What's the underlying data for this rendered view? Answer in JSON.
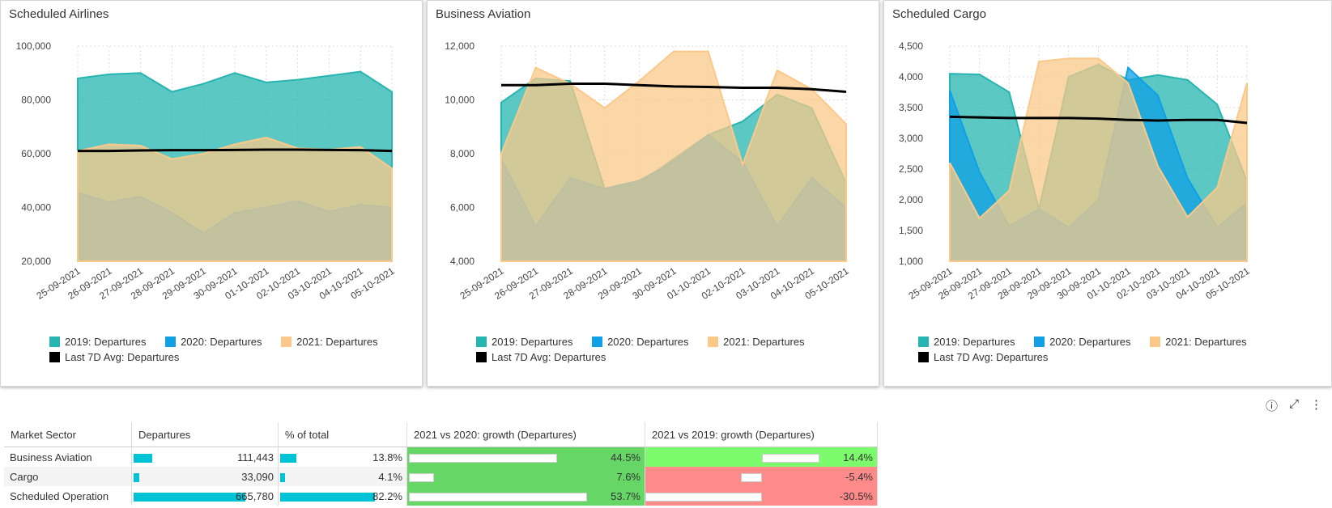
{
  "legend": {
    "s2019": "2019: Departures",
    "s2020": "2020: Departures",
    "s2021": "2021: Departures",
    "avg": "Last 7D Avg: Departures"
  },
  "colors": {
    "s2019": "#26b5b0",
    "s2020": "#0fa0e6",
    "s2021": "#fac98a",
    "avg": "#000000"
  },
  "charts": [
    {
      "title": "Scheduled Airlines",
      "chart_data": {
        "type": "area",
        "categories": [
          "25-09-2021",
          "26-09-2021",
          "27-09-2021",
          "28-09-2021",
          "29-09-2021",
          "30-09-2021",
          "01-10-2021",
          "02-10-2021",
          "03-10-2021",
          "04-10-2021",
          "05-10-2021"
        ],
        "ylim": [
          20000,
          100000
        ],
        "yticks": [
          "20,000",
          "40,000",
          "60,000",
          "80,000",
          "100,000"
        ],
        "series": [
          {
            "name": "2019: Departures",
            "values": [
              88000,
              89500,
              90000,
              83000,
              86000,
              90000,
              86500,
              87500,
              89000,
              90500,
              83000
            ]
          },
          {
            "name": "2020: Departures",
            "values": [
              45500,
              42000,
              44000,
              38000,
              30500,
              38000,
              40000,
              42500,
              38500,
              41000,
              40000
            ]
          },
          {
            "name": "2021: Departures",
            "values": [
              61000,
              63500,
              63000,
              58000,
              60000,
              63500,
              66000,
              62000,
              61500,
              62500,
              54500
            ]
          },
          {
            "name": "Last 7D Avg: Departures",
            "values": [
              61000,
              61000,
              61200,
              61300,
              61300,
              61400,
              61500,
              61500,
              61400,
              61300,
              61000
            ]
          }
        ]
      }
    },
    {
      "title": "Business Aviation",
      "chart_data": {
        "type": "area",
        "categories": [
          "25-09-2021",
          "26-09-2021",
          "27-09-2021",
          "28-09-2021",
          "29-09-2021",
          "30-09-2021",
          "01-10-2021",
          "02-10-2021",
          "03-10-2021",
          "04-10-2021",
          "05-10-2021"
        ],
        "ylim": [
          4000,
          12000
        ],
        "yticks": [
          "4,000",
          "6,000",
          "8,000",
          "10,000",
          "12,000"
        ],
        "series": [
          {
            "name": "2019: Departures",
            "values": [
              9900,
              10800,
              10700,
              6700,
              6900,
              7800,
              8700,
              9200,
              10200,
              9700,
              6900
            ]
          },
          {
            "name": "2020: Departures",
            "values": [
              7800,
              5300,
              7100,
              6700,
              7000,
              7700,
              8700,
              7700,
              5300,
              7100,
              6000
            ]
          },
          {
            "name": "2021: Departures",
            "values": [
              8000,
              11200,
              10600,
              9700,
              10700,
              11800,
              11800,
              7600,
              11100,
              10400,
              9100
            ]
          },
          {
            "name": "Last 7D Avg: Departures",
            "values": [
              10550,
              10550,
              10600,
              10600,
              10550,
              10500,
              10480,
              10450,
              10450,
              10400,
              10300
            ]
          }
        ]
      }
    },
    {
      "title": "Scheduled Cargo",
      "chart_data": {
        "type": "area",
        "categories": [
          "25-09-2021",
          "26-09-2021",
          "27-09-2021",
          "28-09-2021",
          "29-09-2021",
          "30-09-2021",
          "01-10-2021",
          "02-10-2021",
          "03-10-2021",
          "04-10-2021",
          "05-10-2021"
        ],
        "ylim": [
          1000,
          4500
        ],
        "yticks": [
          "1,000",
          "1,500",
          "2,000",
          "2,500",
          "3,000",
          "3,500",
          "4,000",
          "4,500"
        ],
        "series": [
          {
            "name": "2019: Departures",
            "values": [
              4050,
              4040,
              3750,
              1850,
              4000,
              4200,
              3950,
              4030,
              3950,
              3550,
              2300
            ]
          },
          {
            "name": "2020: Departures",
            "values": [
              3780,
              2450,
              1570,
              1850,
              1550,
              2000,
              4150,
              3700,
              2350,
              1550,
              1950
            ]
          },
          {
            "name": "2021: Departures",
            "values": [
              2600,
              1700,
              2150,
              4250,
              4300,
              4300,
              3900,
              2550,
              1720,
              2200,
              3900
            ]
          },
          {
            "name": "Last 7D Avg: Departures",
            "values": [
              3350,
              3340,
              3330,
              3330,
              3330,
              3320,
              3300,
              3290,
              3300,
              3300,
              3250
            ]
          }
        ]
      }
    }
  ],
  "toolbar": {
    "info": "ⓘ",
    "expand": "⤢",
    "more": "⋮"
  },
  "table": {
    "headers": [
      "Market Sector",
      "Departures",
      "% of total",
      "2021 vs 2020: growth (Departures)",
      "2021 vs 2019: growth (Departures)"
    ],
    "rows": [
      {
        "sector": "Business Aviation",
        "departures": "111,443",
        "dep_frac": 0.167,
        "pct": "13.8%",
        "pct_frac": 0.138,
        "g2020": "44.5%",
        "g2020_frac": 0.83,
        "g2019": "14.4%",
        "g2019_frac": 0.47
      },
      {
        "sector": "Cargo",
        "departures": "33,090",
        "dep_frac": 0.05,
        "pct": "4.1%",
        "pct_frac": 0.041,
        "g2020": "7.6%",
        "g2020_frac": 0.14,
        "g2019": "-5.4%",
        "g2019_frac": 0.18
      },
      {
        "sector": "Scheduled Operation",
        "departures": "665,780",
        "dep_frac": 1.0,
        "pct": "82.2%",
        "pct_frac": 0.822,
        "g2020": "53.7%",
        "g2020_frac": 1.0,
        "g2019": "-30.5%",
        "g2019_frac": 1.0
      }
    ]
  }
}
